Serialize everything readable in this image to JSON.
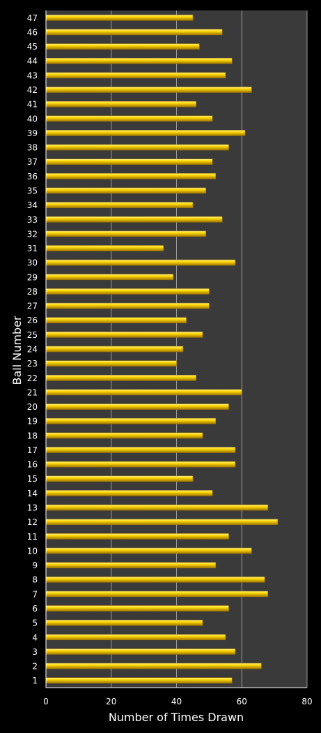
{
  "chart_data": {
    "type": "bar",
    "orientation": "horizontal",
    "title": "",
    "xlabel": "Number of Times Drawn",
    "ylabel": "Ball Number",
    "xlim": [
      0,
      80
    ],
    "xticks": [
      0,
      20,
      40,
      60,
      80
    ],
    "grid": true,
    "legend": "none",
    "colors": {
      "background": "#000000",
      "plot_area": "#3a3a3a",
      "bar": "#ffd700",
      "bar_highlight": "#fff59a",
      "bar_shadow": "#a07800",
      "gridline": "#9a9a9a",
      "text": "#ffffff"
    },
    "categories": [
      "1",
      "2",
      "3",
      "4",
      "5",
      "6",
      "7",
      "8",
      "9",
      "10",
      "11",
      "12",
      "13",
      "14",
      "15",
      "16",
      "17",
      "18",
      "19",
      "20",
      "21",
      "22",
      "23",
      "24",
      "25",
      "26",
      "27",
      "28",
      "29",
      "30",
      "31",
      "32",
      "33",
      "34",
      "35",
      "36",
      "37",
      "38",
      "39",
      "40",
      "41",
      "42",
      "43",
      "44",
      "45",
      "46",
      "47"
    ],
    "values": [
      57,
      66,
      58,
      55,
      48,
      56,
      68,
      67,
      52,
      63,
      56,
      71,
      68,
      51,
      45,
      58,
      58,
      48,
      52,
      56,
      60,
      46,
      40,
      42,
      48,
      43,
      50,
      50,
      39,
      58,
      36,
      49,
      54,
      45,
      49,
      52,
      51,
      56,
      61,
      51,
      46,
      63,
      55,
      57,
      47,
      54,
      45
    ]
  }
}
